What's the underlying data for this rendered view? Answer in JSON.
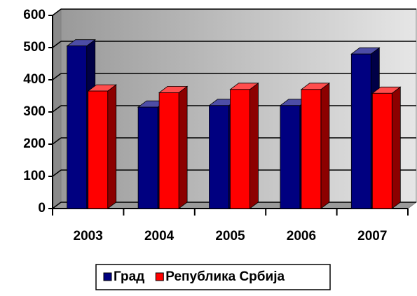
{
  "chart_data": {
    "type": "bar3d",
    "categories": [
      "2003",
      "2004",
      "2005",
      "2006",
      "2007"
    ],
    "series": [
      {
        "name": "Град",
        "color": "#000080",
        "values": [
          505,
          315,
          320,
          320,
          480
        ]
      },
      {
        "name": "Република Србија",
        "color": "#ff0000",
        "values": [
          365,
          360,
          370,
          370,
          358
        ]
      }
    ],
    "ylim": [
      0,
      600
    ],
    "yticks": [
      0,
      100,
      200,
      300,
      400,
      500,
      600
    ],
    "grid": true,
    "legend": "bottom"
  }
}
